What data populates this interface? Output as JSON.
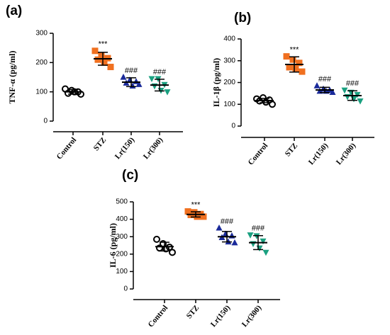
{
  "chart_data": [
    {
      "type": "dot",
      "title": "(a)",
      "y_label": "TNF-α (pg/ml)",
      "categories": [
        "Control",
        "STZ",
        "Lr(150)",
        "Lr(300)"
      ],
      "colors": [
        "#000000",
        "#f07020",
        "#1a2a9a",
        "#1aa080"
      ],
      "markers": [
        "circle-open",
        "square",
        "triangle",
        "triangle-down"
      ],
      "points": [
        [
          110,
          105,
          100,
          95,
          100,
          92
        ],
        [
          240,
          225,
          215,
          210,
          200,
          185
        ],
        [
          150,
          140,
          135,
          130,
          120,
          125
        ],
        [
          145,
          145,
          125,
          120,
          105,
          100
        ]
      ],
      "means": [
        100,
        213,
        133,
        123
      ],
      "errors": [
        8,
        22,
        15,
        20
      ],
      "annotations": [
        null,
        "***",
        "###",
        "###"
      ],
      "ylim": [
        0,
        300
      ],
      "yticks": [
        0,
        100,
        200,
        300
      ]
    },
    {
      "type": "dot",
      "title": "(b)",
      "y_label": "IL-1β (pg/ml)",
      "categories": [
        "Control",
        "STZ",
        "Lr(150)",
        "Lr(300)"
      ],
      "colors": [
        "#000000",
        "#f07020",
        "#1a2a9a",
        "#1aa080"
      ],
      "markers": [
        "circle-open",
        "square",
        "triangle",
        "triangle-down"
      ],
      "points": [
        [
          125,
          130,
          120,
          115,
          110,
          100
        ],
        [
          320,
          305,
          290,
          270,
          265,
          250
        ],
        [
          185,
          170,
          165,
          160,
          160,
          155
        ],
        [
          165,
          155,
          145,
          135,
          125,
          115
        ]
      ],
      "means": [
        117,
        283,
        166,
        140
      ],
      "errors": [
        10,
        35,
        12,
        22
      ],
      "annotations": [
        null,
        "***",
        "###",
        "###"
      ],
      "ylim": [
        0,
        400
      ],
      "yticks": [
        0,
        100,
        200,
        300,
        400
      ]
    },
    {
      "type": "dot",
      "title": "(c)",
      "y_label": "IL-6 (pg/ml)",
      "categories": [
        "Control",
        "STZ",
        "Lr(150)",
        "Lr(300)"
      ],
      "colors": [
        "#000000",
        "#f07020",
        "#1a2a9a",
        "#1aa080"
      ],
      "markers": [
        "circle-open",
        "square",
        "triangle",
        "triangle-down"
      ],
      "points": [
        [
          285,
          260,
          240,
          235,
          230,
          210
        ],
        [
          445,
          440,
          430,
          425,
          415,
          415
        ],
        [
          350,
          315,
          305,
          295,
          270,
          265
        ],
        [
          310,
          305,
          275,
          260,
          235,
          210
        ]
      ],
      "means": [
        243,
        428,
        300,
        266
      ],
      "errors": [
        25,
        15,
        30,
        40
      ],
      "annotations": [
        null,
        "***",
        "###",
        "###"
      ],
      "ylim": [
        0,
        500
      ],
      "yticks": [
        0,
        100,
        200,
        300,
        400,
        500
      ]
    }
  ]
}
